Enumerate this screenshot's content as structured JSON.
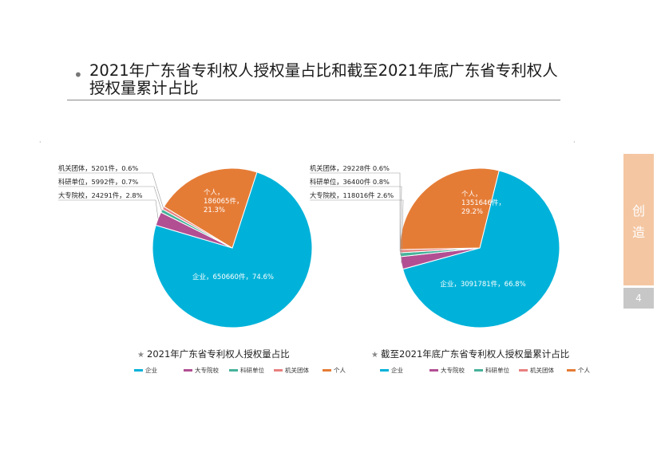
{
  "header": {
    "bullet": "•",
    "title": "2021年广东省专利权人授权量占比和截至2021年底广东省专利权人授权量累计占比"
  },
  "side_tab": {
    "line1": "创",
    "line2": "造"
  },
  "page_number": "4",
  "colors": {
    "企业": "#00b2d9",
    "大专院校": "#b24f93",
    "科研单位": "#46b39a",
    "机关团体": "#e98080",
    "个人": "#e57c36"
  },
  "chart_data": [
    {
      "type": "pie",
      "title": "2021年广东省专利权人授权量占比",
      "title_star": "★",
      "legend": [
        "企业",
        "大专院校",
        "科研单位",
        "机关团体",
        "个人"
      ],
      "slices": [
        {
          "name": "企业",
          "value": 650660,
          "percent": 74.6,
          "label_line1": "企业，650660件，74.6%"
        },
        {
          "name": "大专院校",
          "value": 24291,
          "percent": 2.8,
          "label_line1": "大专院校，24291件，2.8%"
        },
        {
          "name": "科研单位",
          "value": 5992,
          "percent": 0.7,
          "label_line1": "科研单位，5992件，0.7%"
        },
        {
          "name": "机关团体",
          "value": 5201,
          "percent": 0.6,
          "label_line1": "机关团体，5201件，0.6%"
        },
        {
          "name": "个人",
          "value": 186065,
          "percent": 21.3,
          "label_line1": "个人，",
          "label_line2": "186065件，",
          "label_line3": "21.3%"
        }
      ]
    },
    {
      "type": "pie",
      "title": "截至2021年底广东省专利权人授权量累计占比",
      "title_star": "★",
      "legend": [
        "企业",
        "大专院校",
        "科研单位",
        "机关团体",
        "个人"
      ],
      "slices": [
        {
          "name": "企业",
          "value": 3091781,
          "percent": 66.8,
          "label_line1": "企业，3091781件，66.8%"
        },
        {
          "name": "大专院校",
          "value": 118016,
          "percent": 2.6,
          "label_line1": "大专院校，118016件 2.6%"
        },
        {
          "name": "科研单位",
          "value": 36400,
          "percent": 0.8,
          "label_line1": "科研单位，36400件 0.8%"
        },
        {
          "name": "机关团体",
          "value": 29228,
          "percent": 0.6,
          "label_line1": "机关团体，29228件 0.6%"
        },
        {
          "name": "个人",
          "value": 1351646,
          "percent": 29.2,
          "label_line1": "个人，",
          "label_line2": "1351646件，",
          "label_line3": "29.2%"
        }
      ]
    }
  ]
}
